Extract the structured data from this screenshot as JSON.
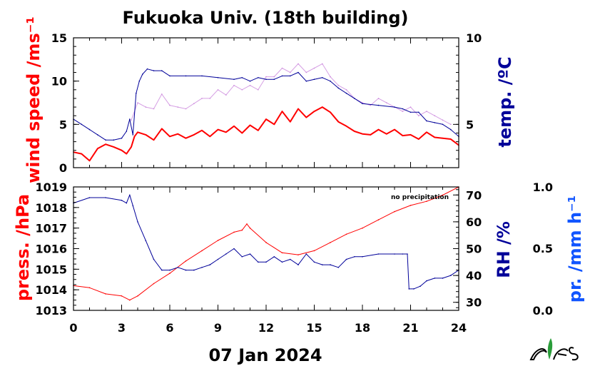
{
  "chart_data": [
    {
      "type": "line",
      "title": "Fukuoka Univ. (18th building)",
      "x_range": [
        0,
        24
      ],
      "x_ticks": [
        "0",
        "3",
        "6",
        "9",
        "12",
        "15",
        "18",
        "21",
        "24"
      ],
      "y_left_label": "wind speed /ms⁻¹",
      "y_left_range": [
        0,
        15
      ],
      "y_left_ticks": [
        "0",
        "5",
        "10",
        "15"
      ],
      "y_right_label": "temp. /ºC",
      "y_right_range": [
        2.5,
        10
      ],
      "y_right_ticks": [
        "5",
        "10"
      ],
      "colors": {
        "wind_mean": "#ff0000",
        "wind_gust": "#cc88dd",
        "temp": "#000099",
        "axes": "#000000"
      },
      "series": [
        {
          "name": "wind speed (10-min mean)",
          "axis": "left",
          "x": [
            0,
            0.5,
            1,
            1.5,
            2,
            2.5,
            3,
            3.3,
            3.6,
            3.8,
            4,
            4.5,
            5,
            5.5,
            6,
            6.5,
            7,
            7.5,
            8,
            8.5,
            9,
            9.5,
            10,
            10.5,
            11,
            11.5,
            12,
            12.5,
            13,
            13.5,
            14,
            14.5,
            15,
            15.5,
            16,
            16.5,
            17,
            17.5,
            18,
            18.5,
            19,
            19.5,
            20,
            20.5,
            21,
            21.5,
            22,
            22.5,
            23,
            23.5,
            24
          ],
          "y": [
            1.8,
            1.6,
            0.8,
            2.2,
            2.7,
            2.4,
            2.0,
            1.6,
            2.4,
            3.6,
            4.1,
            3.8,
            3.2,
            4.5,
            3.6,
            3.9,
            3.4,
            3.8,
            4.3,
            3.6,
            4.4,
            4.1,
            4.8,
            4.0,
            4.9,
            4.3,
            5.6,
            5.0,
            6.5,
            5.3,
            6.8,
            5.8,
            6.5,
            7.0,
            6.4,
            5.3,
            4.8,
            4.2,
            3.9,
            3.8,
            4.4,
            3.9,
            4.4,
            3.7,
            3.8,
            3.3,
            4.1,
            3.5,
            3.4,
            3.3,
            2.6
          ]
        },
        {
          "name": "wind speed (max)",
          "axis": "left",
          "x": [
            3.6,
            4,
            4.5,
            5,
            5.5,
            6,
            6.5,
            7,
            7.5,
            8,
            8.5,
            9,
            9.5,
            10,
            10.5,
            11,
            11.5,
            12,
            12.5,
            13,
            13.5,
            14,
            14.5,
            15,
            15.5,
            16,
            16.5,
            17,
            17.5,
            18,
            18.5,
            19,
            19.5,
            20,
            20.5,
            21,
            21.5,
            22,
            22.5,
            23,
            23.5
          ],
          "y": [
            5.5,
            7.5,
            7.0,
            6.8,
            8.5,
            7.2,
            7.0,
            6.8,
            7.4,
            8.0,
            8.0,
            9.0,
            8.4,
            9.5,
            9.0,
            9.5,
            9.0,
            10.5,
            10.5,
            11.5,
            11.0,
            12.0,
            11.0,
            11.5,
            12.0,
            10.5,
            9.5,
            9.0,
            8.0,
            7.5,
            7.2,
            8.0,
            7.5,
            7.0,
            6.5,
            7.0,
            6.0,
            6.5,
            6.0,
            5.5,
            5.0
          ]
        },
        {
          "name": "temperature",
          "axis": "right",
          "x": [
            0,
            0.5,
            1,
            1.5,
            2,
            2.5,
            3,
            3.3,
            3.5,
            3.7,
            3.9,
            4.1,
            4.3,
            4.6,
            5,
            5.5,
            6,
            7,
            8,
            9,
            10,
            10.5,
            11,
            11.5,
            12,
            12.5,
            13,
            13.5,
            14,
            14.5,
            15,
            15.5,
            16,
            16.5,
            17,
            17.5,
            18,
            19,
            20,
            20.5,
            21,
            21.5,
            22,
            22.5,
            23,
            23.5,
            24
          ],
          "y": [
            5.3,
            5.0,
            4.7,
            4.4,
            4.1,
            4.1,
            4.2,
            4.6,
            5.3,
            4.4,
            6.8,
            7.5,
            7.9,
            8.2,
            8.1,
            8.1,
            7.8,
            7.8,
            7.8,
            7.7,
            7.6,
            7.7,
            7.5,
            7.7,
            7.6,
            7.6,
            7.8,
            7.8,
            8.0,
            7.5,
            7.6,
            7.7,
            7.5,
            7.1,
            6.8,
            6.5,
            6.2,
            6.1,
            6.0,
            5.9,
            5.7,
            5.7,
            5.2,
            5.1,
            5.0,
            4.7,
            4.3
          ]
        }
      ]
    },
    {
      "type": "line",
      "x_range": [
        0,
        24
      ],
      "x_ticks": [
        "0",
        "3",
        "6",
        "9",
        "12",
        "15",
        "18",
        "21",
        "24"
      ],
      "y_left_label": "press. /hPa",
      "y_left_range": [
        1013,
        1019
      ],
      "y_left_ticks": [
        "1013",
        "1014",
        "1015",
        "1016",
        "1017",
        "1018",
        "1019"
      ],
      "y_right_label": "RH /%",
      "y_right_range": [
        27,
        73
      ],
      "y_right_ticks": [
        "30",
        "40",
        "50",
        "60",
        "70"
      ],
      "y_far_label": "pr. /mm h⁻¹",
      "y_far_ticks": [
        "0.0",
        "0.5",
        "1.0"
      ],
      "annotation": "no precipitation",
      "colors": {
        "press": "#ff0000",
        "rh": "#000099",
        "pr_label": "#1155ff",
        "axes": "#000000"
      },
      "series": [
        {
          "name": "pressure",
          "axis": "left",
          "x": [
            0,
            1,
            2,
            3,
            3.5,
            4,
            5,
            6,
            7,
            8,
            9,
            10,
            10.5,
            10.8,
            11,
            12,
            13,
            14,
            15,
            16,
            17,
            18,
            19,
            20,
            21,
            22,
            23,
            24
          ],
          "y": [
            1014.2,
            1014.1,
            1013.8,
            1013.7,
            1013.5,
            1013.7,
            1014.3,
            1014.8,
            1015.4,
            1015.9,
            1016.4,
            1016.8,
            1016.9,
            1017.2,
            1017.0,
            1016.3,
            1015.8,
            1015.7,
            1015.9,
            1016.3,
            1016.7,
            1017.0,
            1017.4,
            1017.8,
            1018.1,
            1018.3,
            1018.6,
            1019.0
          ]
        },
        {
          "name": "relative humidity",
          "axis": "right",
          "x": [
            0,
            1,
            2,
            3,
            3.3,
            3.5,
            3.7,
            4,
            4.5,
            5,
            5.5,
            6,
            6.5,
            7,
            7.5,
            8,
            8.5,
            9,
            9.5,
            10,
            10.5,
            11,
            11.5,
            12,
            12.5,
            13,
            13.5,
            14,
            14.5,
            15,
            15.5,
            16,
            16.5,
            17,
            17.5,
            18,
            19,
            20,
            20.5,
            20.8,
            20.9,
            21.2,
            21.6,
            22,
            22.5,
            23,
            23.5,
            24
          ],
          "y": [
            67,
            69,
            69,
            68,
            67,
            70,
            66,
            60,
            53,
            46,
            42,
            42,
            43,
            42,
            42,
            43,
            44,
            46,
            48,
            50,
            47,
            48,
            45,
            45,
            47,
            45,
            46,
            44,
            48,
            45,
            44,
            44,
            43,
            46,
            47,
            47,
            48,
            48,
            48,
            48,
            35,
            35,
            36,
            38,
            39,
            39,
            40,
            42
          ]
        }
      ]
    }
  ],
  "xlabel": "07 Jan 2024",
  "logo": {
    "name": "logo-glyph",
    "color": "#2a9d3a"
  }
}
